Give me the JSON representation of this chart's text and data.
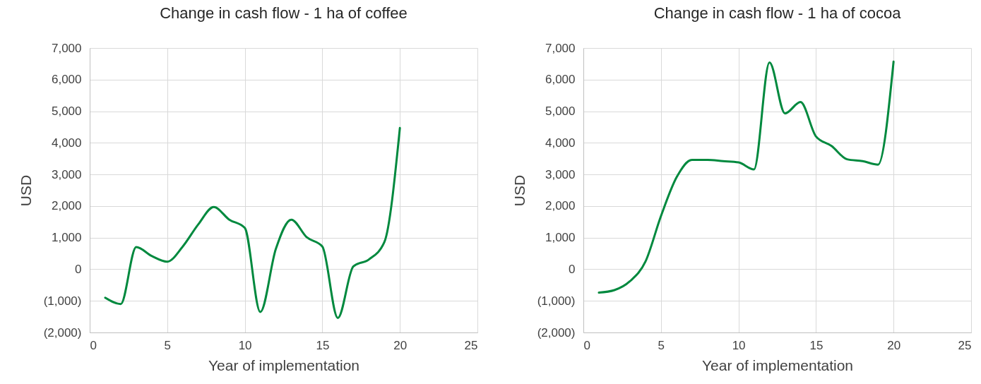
{
  "chart_data": [
    {
      "type": "line",
      "title": "Change in cash flow - 1 ha of coffee",
      "xlabel": "Year of implementation",
      "ylabel": "USD",
      "x": [
        1,
        2,
        3,
        4,
        5,
        6,
        7,
        8,
        9,
        10,
        11,
        12,
        13,
        14,
        15,
        16,
        17,
        18,
        19,
        20
      ],
      "series": [
        {
          "color": "#00893e",
          "values": [
            -900,
            -1100,
            700,
            420,
            240,
            720,
            1420,
            1970,
            1570,
            1310,
            -1350,
            640,
            1570,
            1010,
            720,
            -1540,
            90,
            310,
            860,
            4470
          ]
        }
      ],
      "xlim": [
        0,
        25
      ],
      "xticks": [
        0,
        5,
        10,
        15,
        20,
        25
      ],
      "ylim": [
        -2000,
        7000
      ],
      "yticks": [
        {
          "value": -2000,
          "label": "(2,000)"
        },
        {
          "value": -1000,
          "label": "(1,000)"
        },
        0,
        {
          "value": 1000,
          "label": "1,000"
        },
        {
          "value": 2000,
          "label": "2,000"
        },
        {
          "value": 3000,
          "label": "3,000"
        },
        {
          "value": 4000,
          "label": "4,000"
        },
        {
          "value": 5000,
          "label": "5,000"
        },
        {
          "value": 6000,
          "label": "6,000"
        },
        {
          "value": 7000,
          "label": "7,000"
        }
      ],
      "grid": true
    },
    {
      "type": "line",
      "title": "Change in cash flow - 1 ha of cocoa",
      "xlabel": "Year of implementation",
      "ylabel": "USD",
      "x": [
        1,
        2,
        3,
        4,
        5,
        6,
        7,
        8,
        9,
        10,
        11,
        12,
        13,
        14,
        15,
        16,
        17,
        18,
        19,
        20
      ],
      "series": [
        {
          "color": "#00893e",
          "values": [
            -740,
            -660,
            -380,
            240,
            1680,
            2900,
            3460,
            3460,
            3420,
            3380,
            3160,
            6540,
            4930,
            5290,
            4200,
            3900,
            3480,
            3420,
            3310,
            6570
          ]
        }
      ],
      "xlim": [
        0,
        25
      ],
      "xticks": [
        0,
        5,
        10,
        15,
        20,
        25
      ],
      "ylim": [
        -2000,
        7000
      ],
      "yticks": [
        {
          "value": -2000,
          "label": "(2,000)"
        },
        {
          "value": -1000,
          "label": "(1,000)"
        },
        0,
        {
          "value": 1000,
          "label": "1,000"
        },
        {
          "value": 2000,
          "label": "2,000"
        },
        {
          "value": 3000,
          "label": "3,000"
        },
        {
          "value": 4000,
          "label": "4,000"
        },
        {
          "value": 5000,
          "label": "5,000"
        },
        {
          "value": 6000,
          "label": "6,000"
        },
        {
          "value": 7000,
          "label": "7,000"
        }
      ],
      "grid": true
    }
  ]
}
